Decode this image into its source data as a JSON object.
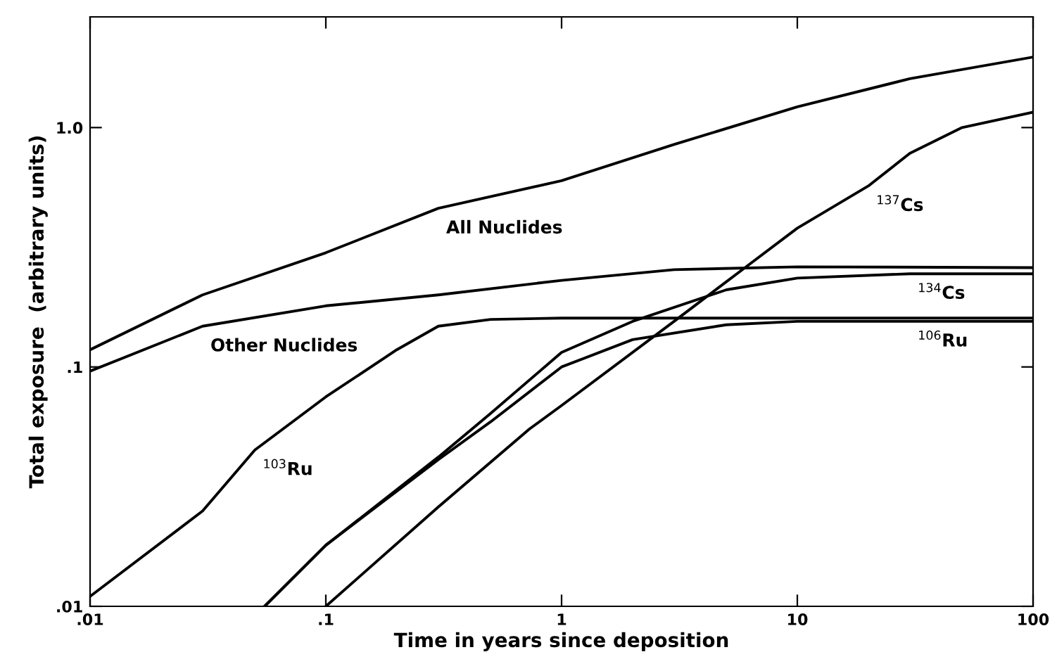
{
  "chart_data": {
    "type": "line",
    "xlabel": "Time in years since deposition",
    "ylabel": "Total exposure  (arbitrary units)",
    "log": "xy",
    "xlim": [
      0.01,
      100
    ],
    "ylim": [
      0.01,
      2.9
    ],
    "xticks": [
      {
        "value": 0.01,
        "label": ".01"
      },
      {
        "value": 0.1,
        "label": ".1"
      },
      1,
      10,
      100
    ],
    "yticks": [
      {
        "value": 0.01,
        "label": ".01"
      },
      {
        "value": 0.1,
        "label": ".1"
      },
      {
        "value": 1,
        "label": "1.0"
      }
    ],
    "grid": false,
    "marker": "none",
    "line_style": "solid",
    "series": [
      {
        "color": "#000000",
        "x": [
          0.01,
          0.03,
          0.1,
          0.3,
          1,
          3,
          10,
          30,
          100
        ],
        "values": [
          0.118,
          0.2,
          0.3,
          0.46,
          0.6,
          0.85,
          1.22,
          1.6,
          1.97
        ]
      },
      {
        "color": "#000000",
        "x": [
          0.01,
          0.03,
          0.1,
          0.3,
          1,
          3,
          10,
          100
        ],
        "values": [
          0.096,
          0.148,
          0.18,
          0.2,
          0.23,
          0.255,
          0.262,
          0.26
        ]
      },
      {
        "color": "#000000",
        "x": [
          0.01,
          0.03,
          0.05,
          0.1,
          0.2,
          0.3,
          0.5,
          1,
          10,
          100
        ],
        "values": [
          0.011,
          0.025,
          0.045,
          0.075,
          0.118,
          0.148,
          0.158,
          0.16,
          0.16,
          0.16
        ]
      },
      {
        "color": "#000000",
        "x": [
          0.055,
          0.1,
          0.3,
          0.5,
          1,
          2,
          5,
          10,
          30,
          100
        ],
        "values": [
          0.01,
          0.018,
          0.041,
          0.059,
          0.1,
          0.13,
          0.15,
          0.155,
          0.155,
          0.155
        ]
      },
      {
        "color": "#000000",
        "x": [
          0.055,
          0.1,
          0.3,
          0.5,
          1,
          2,
          5,
          10,
          30,
          100
        ],
        "values": [
          0.01,
          0.018,
          0.042,
          0.064,
          0.115,
          0.155,
          0.21,
          0.235,
          0.245,
          0.245
        ]
      },
      {
        "color": "#000000",
        "x": [
          0.1,
          0.3,
          0.73,
          1,
          3,
          6,
          10,
          20,
          30,
          50,
          100
        ],
        "values": [
          0.01,
          0.026,
          0.055,
          0.069,
          0.155,
          0.26,
          0.38,
          0.57,
          0.78,
          1.0,
          1.16
        ]
      }
    ],
    "annotations": [
      {
        "text": "All Nuclides",
        "x": 0.3,
        "y": 0.46
      },
      {
        "text": "Other Nuclides",
        "x": 0.03,
        "y": 0.148
      },
      {
        "text": "$^{103}$Ru",
        "x": 0.05,
        "y": 0.045
      },
      {
        "text": "$^{137}$Cs",
        "x": 20,
        "y": 0.57
      },
      {
        "text": "$^{134}$Cs",
        "x": 30,
        "y": 0.245
      },
      {
        "text": "$^{106}$Ru",
        "x": 30,
        "y": 0.155
      }
    ]
  }
}
